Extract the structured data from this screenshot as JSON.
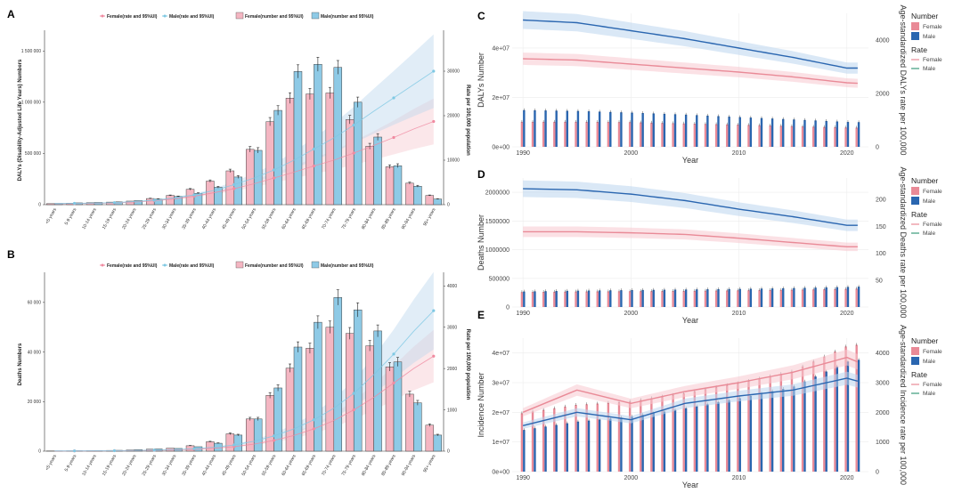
{
  "colors": {
    "female_bar": "#f4b6c2",
    "male_bar": "#8ecae6",
    "female_line": "#f08aa0",
    "male_line": "#7ec8e3",
    "female_dark": "#e98a97",
    "male_dark": "#2a66b0",
    "female_band": "#f7c9d0",
    "male_band": "#bcd6ee"
  },
  "chart_data": [
    {
      "panel": "A",
      "type": "bar",
      "legend": [
        "Female(rate and 95%UI)",
        "Male(rate and 95%UI)",
        "Female(number and 95%UI)",
        "Male(number and 95%UI)"
      ],
      "ylabel": "DALYs (Disability-Adjusted Life Years) Numbers",
      "y2label": "Rate per 100,000 population",
      "yticks": [
        "0",
        "500 000",
        "1 000 000",
        "1 500 000"
      ],
      "y2ticks": [
        "0",
        "10000",
        "20000",
        "30000"
      ],
      "ylim": [
        0,
        1650000
      ],
      "y2lim": [
        0,
        38000
      ],
      "categories": [
        "<5 years",
        "5-9 years",
        "10-14 years",
        "15-19 years",
        "20-24 years",
        "25-29 years",
        "30-34 years",
        "35-39 years",
        "40-44 years",
        "45-49 years",
        "50-54 years",
        "55-59 years",
        "60-64 years",
        "65-69 years",
        "70-74 years",
        "75-79 years",
        "80-84 years",
        "85-89 years",
        "90-94 years",
        "95+ years"
      ],
      "series": [
        {
          "name": "Female(number and 95%UI)",
          "values": [
            10000,
            15000,
            20000,
            25000,
            35000,
            60000,
            90000,
            150000,
            230000,
            330000,
            540000,
            810000,
            1040000,
            1080000,
            1090000,
            830000,
            570000,
            370000,
            210000,
            90000
          ]
        },
        {
          "name": "Male(number and 95%UI)",
          "values": [
            12000,
            18000,
            22000,
            28000,
            40000,
            55000,
            80000,
            110000,
            170000,
            270000,
            530000,
            920000,
            1300000,
            1370000,
            1340000,
            1000000,
            660000,
            380000,
            180000,
            55000
          ]
        },
        {
          "name": "Female(rate and 95%UI)",
          "values": [
            200,
            250,
            300,
            400,
            600,
            900,
            1300,
            1900,
            2700,
            3600,
            4700,
            6000,
            7300,
            8700,
            10000,
            11600,
            13300,
            15100,
            17000,
            18700
          ]
        },
        {
          "name": "Male(rate and 95%UI)",
          "values": [
            250,
            300,
            350,
            450,
            700,
            1000,
            1500,
            2200,
            3200,
            4500,
            6000,
            7800,
            10000,
            12500,
            15000,
            17900,
            21000,
            24000,
            27000,
            30000
          ]
        }
      ]
    },
    {
      "panel": "B",
      "type": "bar",
      "legend": [
        "Female(rate and 95%UI)",
        "Male(rate and 95%UI)",
        "Female(number and 95%UI)",
        "Male(number and 95%UI)"
      ],
      "ylabel": "Deaths Numbers",
      "y2label": "Rate per 100,000 population",
      "yticks": [
        "0",
        "20 000",
        "40 000",
        "60 000"
      ],
      "y2ticks": [
        "0",
        "1000",
        "2000",
        "3000",
        "4000"
      ],
      "ylim": [
        0,
        70000
      ],
      "y2lim": [
        0,
        4200
      ],
      "categories": [
        "<5 years",
        "5-9 years",
        "10-14 years",
        "15-19 years",
        "20-24 years",
        "25-29 years",
        "30-34 years",
        "35-39 years",
        "40-44 years",
        "45-49 years",
        "50-54 years",
        "55-59 years",
        "60-64 years",
        "65-69 years",
        "70-74 years",
        "75-79 years",
        "80-84 years",
        "85-89 years",
        "90-94 years",
        "95+ years"
      ],
      "series": [
        {
          "name": "Female(number and 95%UI)",
          "values": [
            100,
            150,
            200,
            300,
            500,
            800,
            1200,
            2200,
            3800,
            7000,
            13000,
            22500,
            33500,
            41500,
            50000,
            47500,
            42500,
            34000,
            23000,
            10500
          ]
        },
        {
          "name": "Male(number and 95%UI)",
          "values": [
            120,
            180,
            250,
            350,
            600,
            900,
            1100,
            1800,
            3200,
            6500,
            13000,
            25500,
            42000,
            52000,
            62000,
            57000,
            48500,
            36000,
            19500,
            6500
          ]
        },
        {
          "name": "Female(rate and 95%UI)",
          "values": [
            5,
            6,
            8,
            10,
            15,
            20,
            30,
            45,
            70,
            110,
            170,
            260,
            380,
            540,
            740,
            1000,
            1300,
            1650,
            2000,
            2300
          ]
        },
        {
          "name": "Male(rate and 95%UI)",
          "values": [
            6,
            7,
            9,
            12,
            18,
            25,
            38,
            60,
            95,
            150,
            240,
            370,
            540,
            760,
            1040,
            1400,
            1850,
            2350,
            2900,
            3400
          ]
        }
      ]
    },
    {
      "panel": "C",
      "type": "line",
      "ylabel": "DALYs Number",
      "y2label": "Age-standardized DALYs rate per 100,000",
      "xlabel": "Year",
      "xticks": [
        "1990",
        "2000",
        "2010",
        "2020"
      ],
      "yticks": [
        "0e+00",
        "2e+07",
        "4e+07"
      ],
      "y2ticks": [
        "0",
        "2000",
        "4000"
      ],
      "ylim": [
        0,
        54000000.0
      ],
      "y2lim": [
        0,
        5000
      ],
      "x": [
        1990,
        1995,
        2000,
        2005,
        2010,
        2015,
        2020,
        2021
      ],
      "series": [
        {
          "name": "Female",
          "values": [
            1500,
            1500,
            1480,
            1400,
            1330,
            1240,
            1160,
            1150
          ]
        },
        {
          "name": "Male",
          "values": [
            2200,
            2150,
            2050,
            1930,
            1780,
            1640,
            1490,
            1480
          ]
        },
        {
          "name": "Female rate",
          "values": [
            3300,
            3250,
            3100,
            2950,
            2800,
            2620,
            2400,
            2380
          ]
        },
        {
          "name": "Male rate",
          "values": [
            4750,
            4650,
            4350,
            4050,
            3700,
            3350,
            2950,
            2950
          ]
        }
      ]
    },
    {
      "panel": "D",
      "type": "line",
      "ylabel": "Deaths Number",
      "y2label": "Age-standardized Deaths rate per 100,000",
      "xlabel": "Year",
      "xticks": [
        "1990",
        "2000",
        "2010",
        "2020"
      ],
      "yticks": [
        "0",
        "500000",
        "1000000",
        "1500000",
        "2000000"
      ],
      "y2ticks": [
        "50",
        "100",
        "150",
        "200"
      ],
      "ylim": [
        0,
        2250000
      ],
      "y2lim": [
        0,
        240
      ],
      "x": [
        1990,
        1995,
        2000,
        2005,
        2010,
        2015,
        2020,
        2021
      ],
      "series": [
        {
          "name": "Female",
          "values": [
            260000,
            270000,
            275000,
            280000,
            290000,
            300000,
            315000,
            320000
          ]
        },
        {
          "name": "Male",
          "values": [
            270000,
            285000,
            295000,
            305000,
            315000,
            330000,
            350000,
            355000
          ]
        },
        {
          "name": "Female rate",
          "values": [
            140,
            140,
            138,
            135,
            128,
            120,
            112,
            112
          ]
        },
        {
          "name": "Male rate",
          "values": [
            220,
            218,
            210,
            198,
            182,
            168,
            152,
            152
          ]
        }
      ]
    },
    {
      "panel": "E",
      "type": "line",
      "ylabel": "Incidence Number",
      "y2label": "Age-standardized Incidence rate per 100,000",
      "xlabel": "Year",
      "xticks": [
        "1990",
        "2000",
        "2010",
        "2020"
      ],
      "yticks": [
        "0e+00",
        "1e+07",
        "2e+07",
        "3e+07",
        "4e+07"
      ],
      "y2ticks": [
        "0",
        "1000",
        "2000",
        "3000",
        "4000"
      ],
      "ylim": [
        0,
        45000000.0
      ],
      "y2lim": [
        0,
        4500
      ],
      "x": [
        1990,
        1995,
        2000,
        2005,
        2010,
        2015,
        2020,
        2021
      ],
      "series": [
        {
          "name": "Female",
          "values": [
            3500,
            4000,
            4200,
            4700,
            5300,
            6000,
            7500,
            7600
          ]
        },
        {
          "name": "Male",
          "values": [
            2500,
            3000,
            3300,
            3800,
            4400,
            5100,
            6600,
            6700
          ]
        },
        {
          "name": "Female rate",
          "values": [
            2000,
            2750,
            2300,
            2700,
            3000,
            3350,
            3850,
            3700
          ]
        },
        {
          "name": "Male rate",
          "values": [
            1550,
            2000,
            1750,
            2300,
            2550,
            2750,
            3150,
            3050
          ]
        }
      ]
    }
  ],
  "right_legend": {
    "number_title": "Number",
    "rate_title": "Rate",
    "female": "Female",
    "male": "Male"
  }
}
